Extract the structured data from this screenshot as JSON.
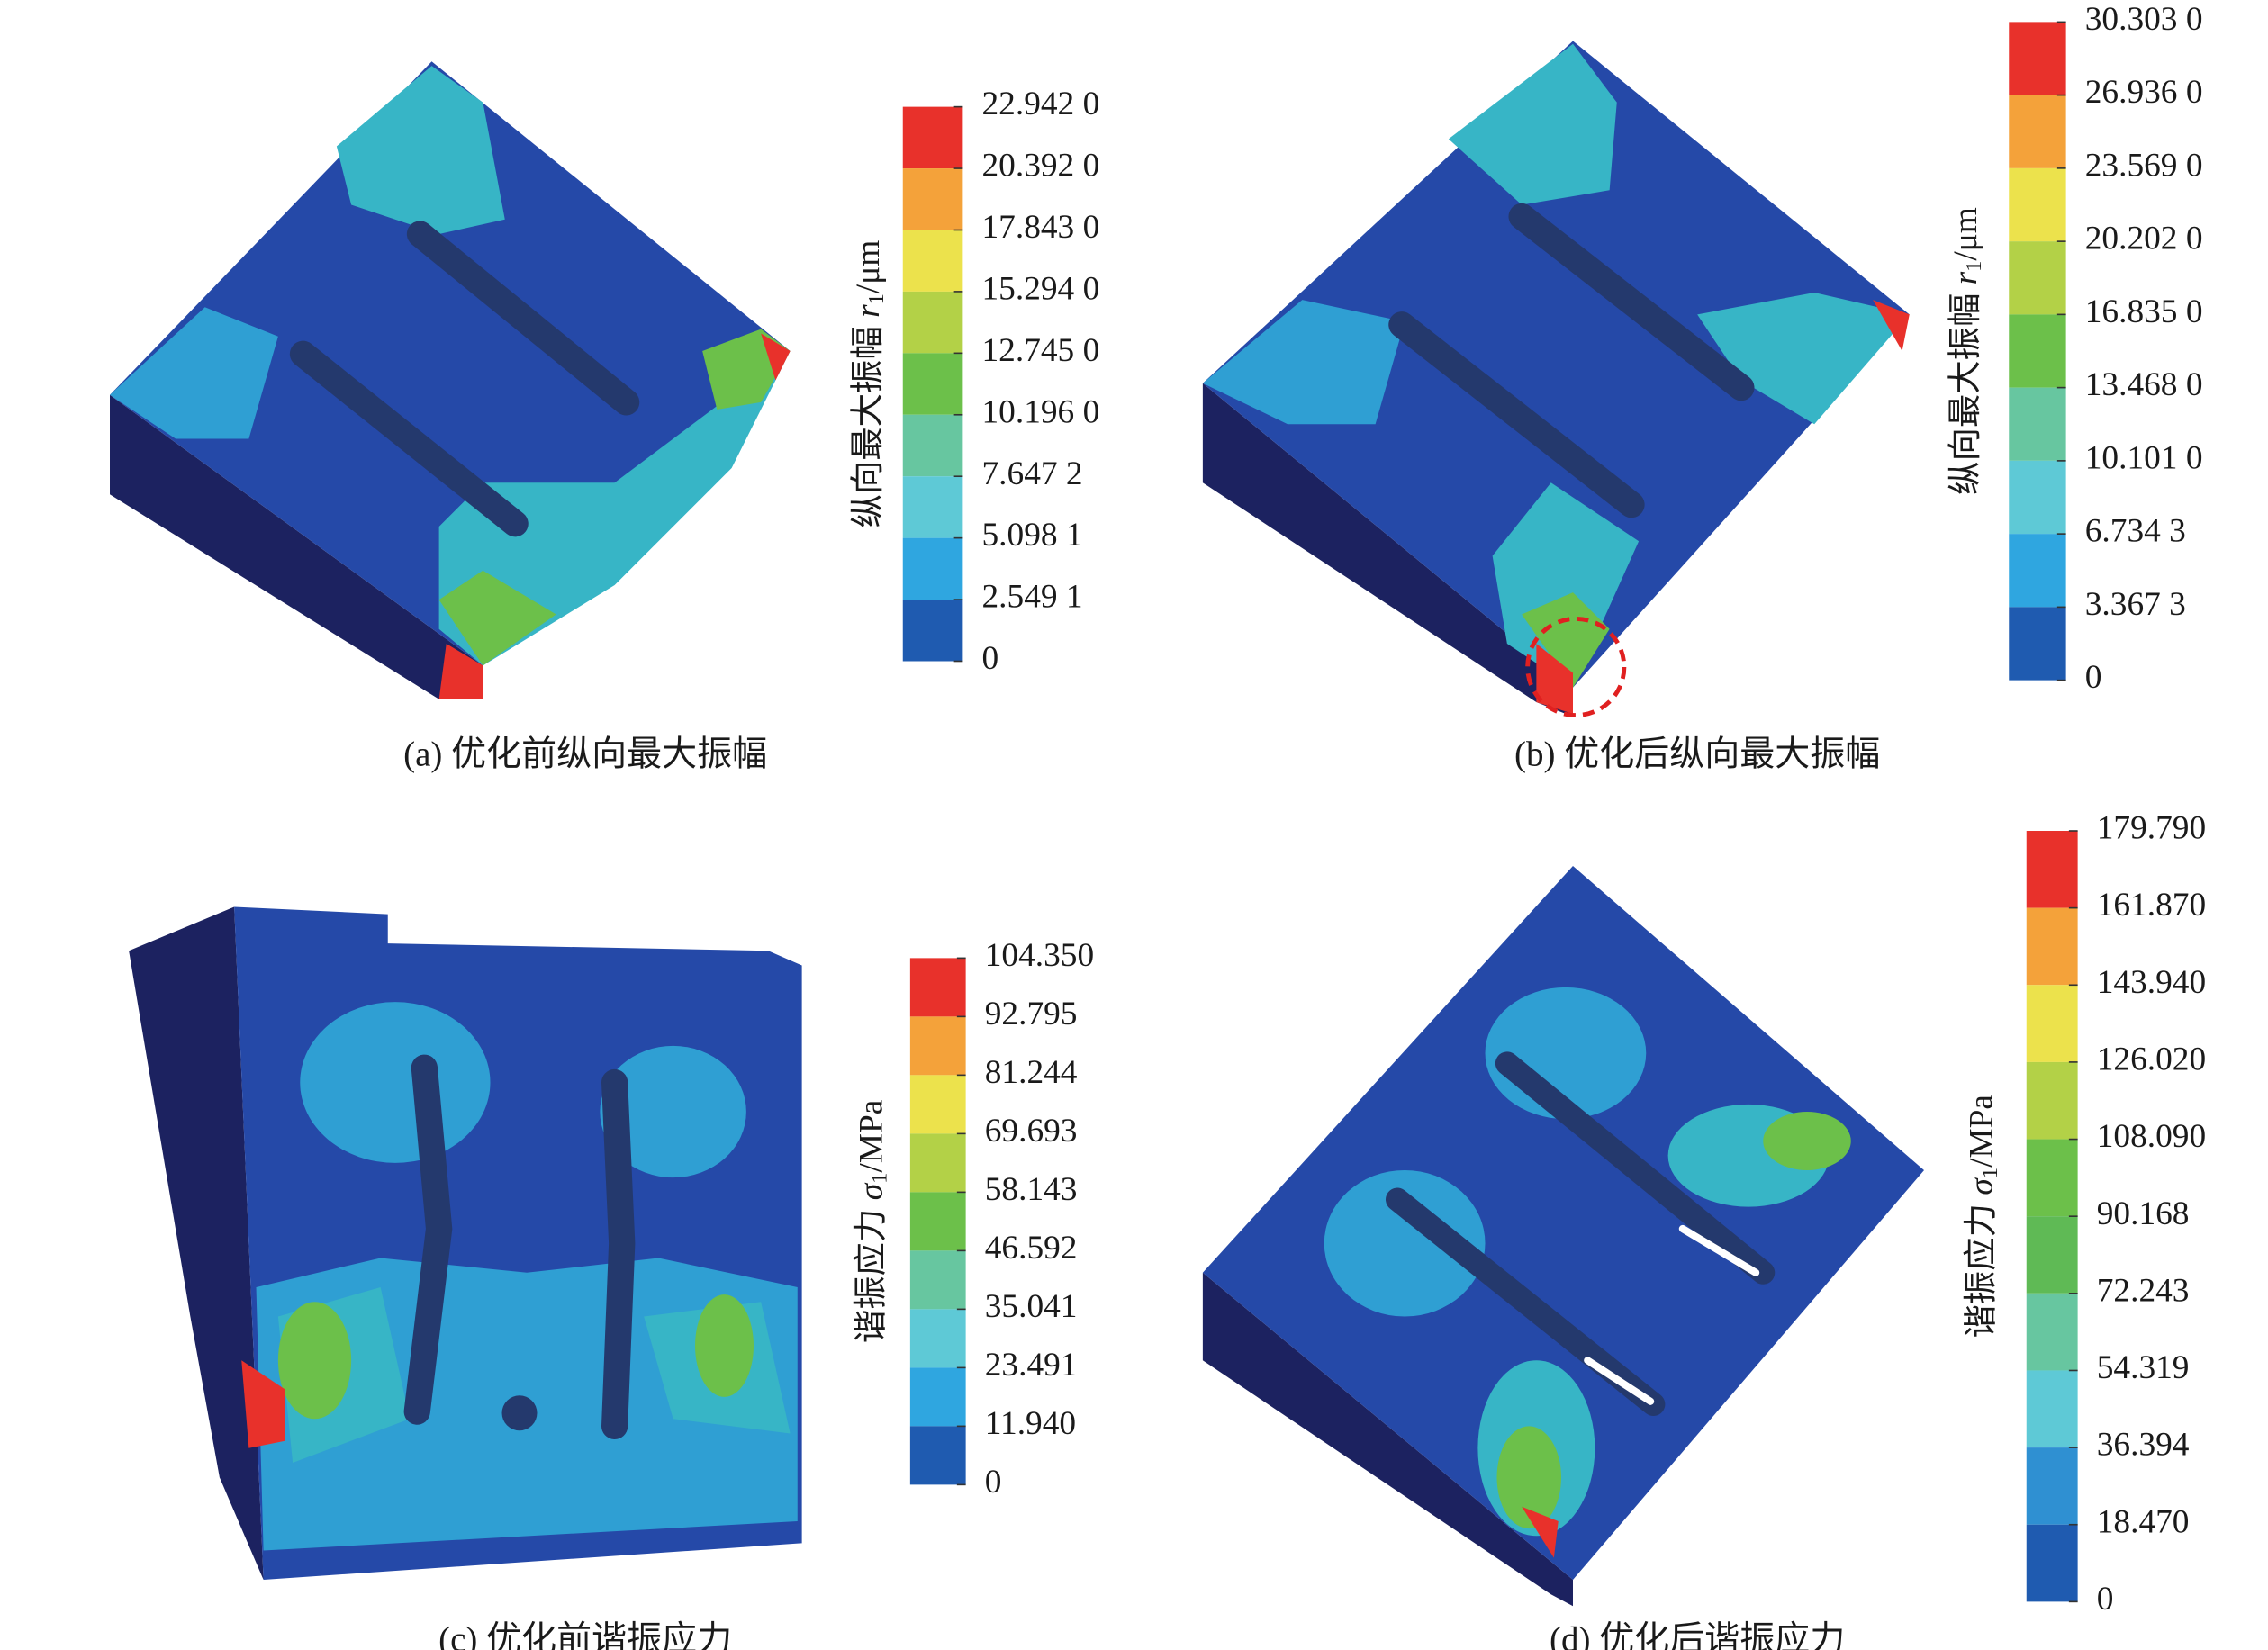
{
  "panels": [
    {
      "caption": "(a) 优化前纵向最大振幅",
      "legend": {
        "title": {
          "text": "纵向最大振幅 ",
          "var": "r",
          "sub": "1",
          "unit": "/μm"
        },
        "labels": [
          "22.942 0",
          "20.392 0",
          "17.843 0",
          "15.294 0",
          "12.745 0",
          "10.196 0",
          "7.647 2",
          "5.098 1",
          "2.549 1",
          "0"
        ]
      }
    },
    {
      "caption": "(b) 优化后纵向最大振幅",
      "legend": {
        "title": {
          "text": "纵向最大振幅 ",
          "var": "r",
          "sub": "1",
          "unit": "/μm"
        },
        "labels": [
          "30.303 0",
          "26.936 0",
          "23.569 0",
          "20.202 0",
          "16.835 0",
          "13.468 0",
          "10.101 0",
          "6.734 3",
          "3.367 3",
          "0"
        ]
      }
    },
    {
      "caption": "(c) 优化前谐振应力",
      "legend": {
        "title": {
          "text": "谐振应力 ",
          "var": "σ",
          "sub": "1",
          "unit": "/MPa"
        },
        "labels": [
          "104.350",
          "92.795",
          "81.244",
          "69.693",
          "58.143",
          "46.592",
          "35.041",
          "23.491",
          "11.940",
          "0"
        ]
      }
    },
    {
      "caption": "(d) 优化后谐振应力",
      "legend": {
        "title": {
          "text": "谐振应力 ",
          "var": "σ",
          "sub": "1",
          "unit": "/MPa"
        },
        "labels": [
          "179.790",
          "161.870",
          "143.940",
          "126.020",
          "108.090",
          "90.168",
          "72.243",
          "54.319",
          "36.394",
          "18.470",
          "0"
        ]
      }
    }
  ]
}
